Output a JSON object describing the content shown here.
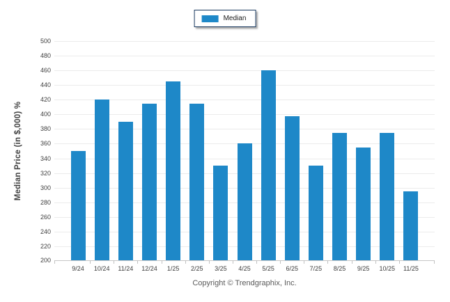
{
  "legend": {
    "label": "Median",
    "swatch_color": "#1E88C8",
    "border_color": "#17375E"
  },
  "footer": {
    "caption": "Copyright © Trendgraphix, Inc."
  },
  "chart_data": {
    "type": "bar",
    "title": "",
    "xlabel": "",
    "ylabel": "Median Price (in $,000) %",
    "legend_entries": [
      "Median"
    ],
    "legend_position": "top-center",
    "grid": true,
    "ylim": [
      200,
      500
    ],
    "ytick_step": 20,
    "bar_color": "#1E88C8",
    "categories": [
      "9/24",
      "10/24",
      "11/24",
      "12/24",
      "1/25",
      "2/25",
      "3/25",
      "4/25",
      "5/25",
      "6/25",
      "7/25",
      "8/25",
      "9/25",
      "10/25",
      "11/25"
    ],
    "values": [
      350,
      420,
      390,
      415,
      445,
      415,
      330,
      360,
      460,
      397,
      330,
      375,
      355,
      375,
      295
    ]
  }
}
